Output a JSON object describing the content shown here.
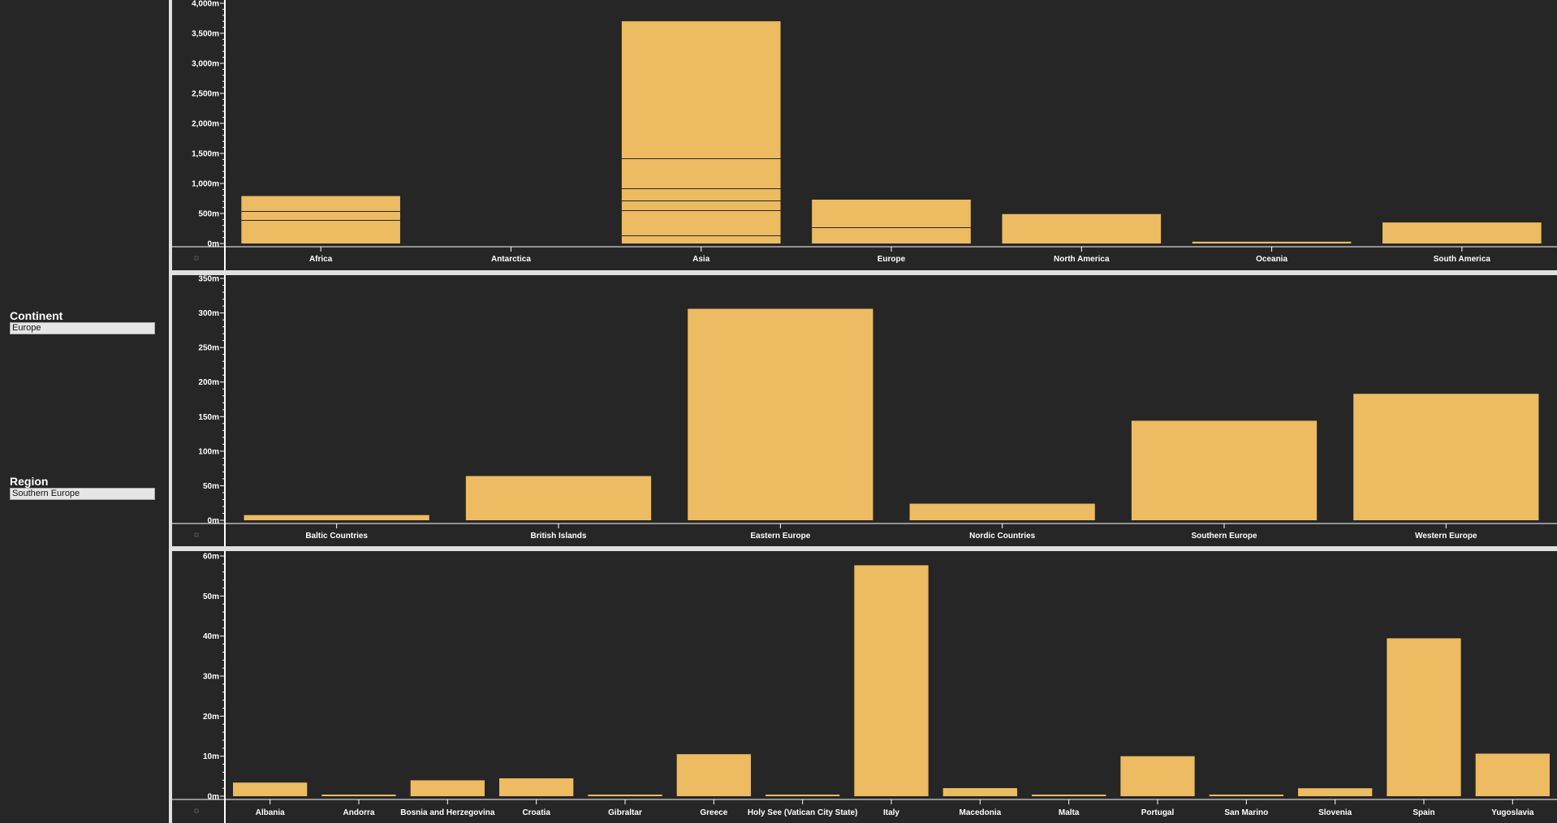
{
  "filters": {
    "continent": {
      "label": "Continent",
      "value": "Europe"
    },
    "region": {
      "label": "Region",
      "value": "Southern Europe"
    }
  },
  "colors": {
    "bar": "#ecbb62",
    "background": "#262626",
    "axis": "#ffffff",
    "divider": "#e0e0e0"
  },
  "chart_data": [
    {
      "type": "bar",
      "title": "",
      "xlabel": "",
      "ylabel": "",
      "ylim": [
        0,
        4000
      ],
      "yticks": [
        0,
        500,
        1000,
        1500,
        2000,
        2500,
        3000,
        3500,
        4000
      ],
      "ytick_labels": [
        "0m",
        "500m",
        "1,000m",
        "1,500m",
        "2,000m",
        "2,500m",
        "3,000m",
        "3,500m",
        "4,000m"
      ],
      "categories": [
        "Africa",
        "Antarctica",
        "Asia",
        "Europe",
        "North America",
        "Oceania",
        "South America"
      ],
      "values": [
        790,
        0,
        3700,
        730,
        490,
        30,
        350
      ],
      "stack_segment_boundaries": [
        [
          390,
          540
        ],
        [],
        [
          140,
          560,
          710,
          920,
          1420
        ],
        [
          270
        ],
        [],
        [],
        []
      ],
      "grid": false,
      "legend": "none"
    },
    {
      "type": "bar",
      "title": "",
      "xlabel": "",
      "ylabel": "",
      "ylim": [
        0,
        350
      ],
      "yticks": [
        0,
        50,
        100,
        150,
        200,
        250,
        300,
        350
      ],
      "ytick_labels": [
        "0m",
        "50m",
        "100m",
        "150m",
        "200m",
        "250m",
        "300m",
        "350m"
      ],
      "categories": [
        "Baltic Countries",
        "British Islands",
        "Eastern Europe",
        "Nordic Countries",
        "Southern Europe",
        "Western Europe"
      ],
      "values": [
        7.5,
        64,
        306,
        24,
        144,
        183
      ],
      "grid": false,
      "legend": "none"
    },
    {
      "type": "bar",
      "title": "",
      "xlabel": "",
      "ylabel": "",
      "ylim": [
        0,
        60
      ],
      "yticks": [
        0,
        10,
        20,
        30,
        40,
        50,
        60
      ],
      "ytick_labels": [
        "0m",
        "10m",
        "20m",
        "30m",
        "40m",
        "50m",
        "60m"
      ],
      "categories": [
        "Albania",
        "Andorra",
        "Bosnia and Herzegovina",
        "Croatia",
        "Gibraltar",
        "Greece",
        "Holy See (Vatican City State)",
        "Italy",
        "Macedonia",
        "Malta",
        "Portugal",
        "San Marino",
        "Slovenia",
        "Spain",
        "Yugoslavia"
      ],
      "values": [
        3.4,
        0.08,
        3.97,
        4.47,
        0.025,
        10.5,
        0.001,
        57.68,
        2.02,
        0.38,
        9.99,
        0.027,
        1.99,
        39.44,
        10.64
      ],
      "grid": false,
      "legend": "none"
    }
  ]
}
